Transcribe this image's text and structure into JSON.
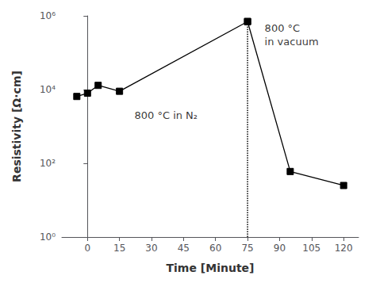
{
  "chart_data": {
    "type": "line",
    "xlabel": "Time [Minute]",
    "ylabel": "Resistivity [Ω·cm]",
    "log": "y",
    "grid": false,
    "xlim": [
      -12,
      127
    ],
    "ylim": [
      1,
      1000000
    ],
    "xticks": [
      0,
      15,
      30,
      45,
      60,
      75,
      90,
      105,
      120
    ],
    "yticks": [
      {
        "value": 1,
        "label": "10⁰"
      },
      {
        "value": 100,
        "label": "10²"
      },
      {
        "value": 10000,
        "label": "10⁴"
      },
      {
        "value": 1000000,
        "label": "10⁶"
      }
    ],
    "series": [
      {
        "type": "line",
        "x": [
          -5,
          0,
          5,
          15,
          75
        ],
        "values": [
          6500,
          8000,
          13000,
          9000,
          700000
        ],
        "color": "black",
        "marker": "square",
        "line_style": "solid"
      },
      {
        "type": "line",
        "x": [
          75,
          95,
          120
        ],
        "values": [
          700000,
          60,
          25
        ],
        "color": "black",
        "marker": "square",
        "line_style": "solid"
      },
      {
        "type": "line",
        "x": [
          75,
          75
        ],
        "values": [
          1,
          700000
        ],
        "color": "black",
        "marker": "none",
        "line_style": "dotted"
      }
    ],
    "annotations": [
      {
        "text": "800 °C in N₂",
        "x": 22,
        "y": 2000
      },
      {
        "text": "800 °C\nin vacuum",
        "x": 83,
        "y": 300000
      }
    ]
  }
}
